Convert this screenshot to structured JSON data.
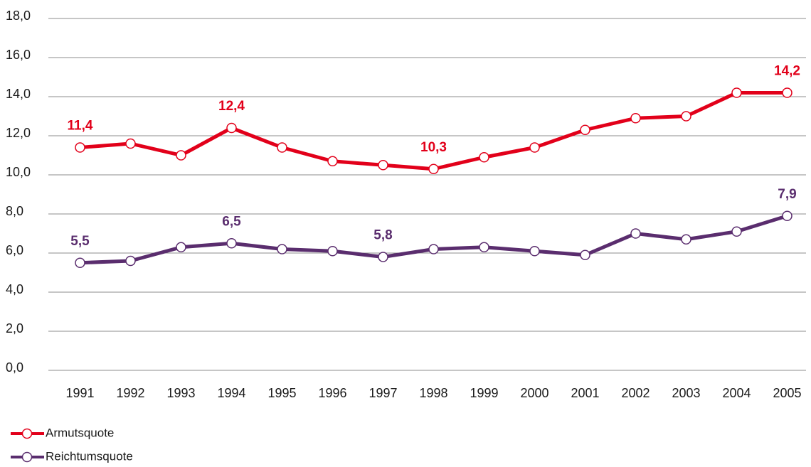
{
  "chart_data": {
    "type": "line",
    "categories": [
      "1991",
      "1992",
      "1993",
      "1994",
      "1995",
      "1996",
      "1997",
      "1998",
      "1999",
      "2000",
      "2001",
      "2002",
      "2003",
      "2004",
      "2005"
    ],
    "series": [
      {
        "name": "Armutsquote",
        "color": "#e2001a",
        "values": [
          11.4,
          11.6,
          11.0,
          12.4,
          11.4,
          10.7,
          10.5,
          10.3,
          10.9,
          11.4,
          12.3,
          12.9,
          13.0,
          14.2,
          14.2
        ],
        "value_labels": [
          "11,4",
          null,
          null,
          "12,4",
          null,
          null,
          null,
          "10,3",
          null,
          null,
          null,
          null,
          null,
          null,
          "14,2"
        ]
      },
      {
        "name": "Reichtumsquote",
        "color": "#5a2d6e",
        "values": [
          5.5,
          5.6,
          6.3,
          6.5,
          6.2,
          6.1,
          5.8,
          6.2,
          6.3,
          6.1,
          5.9,
          7.0,
          6.7,
          7.1,
          7.9
        ],
        "value_labels": [
          "5,5",
          null,
          null,
          "6,5",
          null,
          null,
          "5,8",
          null,
          null,
          null,
          null,
          null,
          null,
          null,
          "7,9"
        ]
      }
    ],
    "ylim": [
      0,
      18
    ],
    "yticks": [
      {
        "value": 0,
        "label": "0,0"
      },
      {
        "value": 2,
        "label": "2,0"
      },
      {
        "value": 4,
        "label": "4,0"
      },
      {
        "value": 6,
        "label": "6,0"
      },
      {
        "value": 8,
        "label": "8,0"
      },
      {
        "value": 10,
        "label": "10,0"
      },
      {
        "value": 12,
        "label": "12,0"
      },
      {
        "value": 14,
        "label": "14,0"
      },
      {
        "value": 16,
        "label": "16,0"
      },
      {
        "value": 18,
        "label": "18,0"
      }
    ],
    "grid": true
  }
}
